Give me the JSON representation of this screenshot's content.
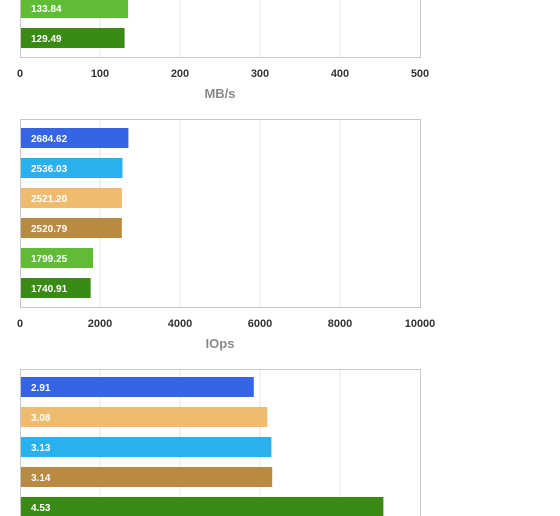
{
  "colors": {
    "blue": "#3565e4",
    "cyan": "#2ab0ec",
    "tan": "#efbb6e",
    "brown": "#b88a42",
    "lightgreen": "#60bb35",
    "darkgreen": "#3a8a16",
    "grid": "#e6e6e6",
    "frame": "#c8c8c8"
  },
  "chart_data": [
    {
      "type": "bar",
      "orientation": "horizontal",
      "xlabel": "MB/s",
      "xlim": [
        0,
        500
      ],
      "xticks": [
        "0",
        "100",
        "200",
        "300",
        "400",
        "500"
      ],
      "bars": [
        {
          "label": "133.84",
          "value": 133.84,
          "color": "lightgreen"
        },
        {
          "label": "129.49",
          "value": 129.49,
          "color": "darkgreen"
        }
      ],
      "grid": true,
      "note": "upper portion cropped"
    },
    {
      "type": "bar",
      "orientation": "horizontal",
      "xlabel": "IOps",
      "xlim": [
        0,
        10000
      ],
      "xticks": [
        "0",
        "2000",
        "4000",
        "6000",
        "8000",
        "10000"
      ],
      "bars": [
        {
          "label": "2684.62",
          "value": 2684.62,
          "color": "blue"
        },
        {
          "label": "2536.03",
          "value": 2536.03,
          "color": "cyan"
        },
        {
          "label": "2521.20",
          "value": 2521.2,
          "color": "tan"
        },
        {
          "label": "2520.79",
          "value": 2520.79,
          "color": "brown"
        },
        {
          "label": "1799.25",
          "value": 1799.25,
          "color": "lightgreen"
        },
        {
          "label": "1740.91",
          "value": 1740.91,
          "color": "darkgreen"
        }
      ],
      "grid": true
    },
    {
      "type": "bar",
      "orientation": "horizontal",
      "xlabel": "",
      "xlim": [
        0,
        5
      ],
      "xticks": [],
      "bars": [
        {
          "label": "2.91",
          "value": 2.91,
          "color": "blue"
        },
        {
          "label": "3.08",
          "value": 3.08,
          "color": "tan"
        },
        {
          "label": "3.13",
          "value": 3.13,
          "color": "cyan"
        },
        {
          "label": "3.14",
          "value": 3.14,
          "color": "brown"
        },
        {
          "label": "4.53",
          "value": 4.53,
          "color": "darkgreen"
        }
      ],
      "grid": true,
      "note": "lower portion cropped"
    }
  ]
}
